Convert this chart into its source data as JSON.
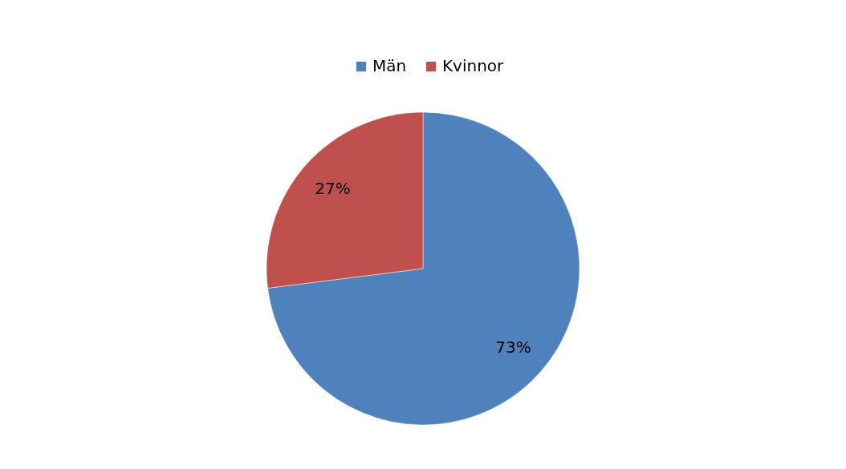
{
  "chart_data": {
    "type": "pie",
    "categories": [
      "Män",
      "Kvinnor"
    ],
    "values": [
      73,
      27
    ],
    "colors": [
      "#4f81bd",
      "#c0504d"
    ],
    "value_labels": [
      "73%",
      "27%"
    ],
    "legend": "top"
  }
}
